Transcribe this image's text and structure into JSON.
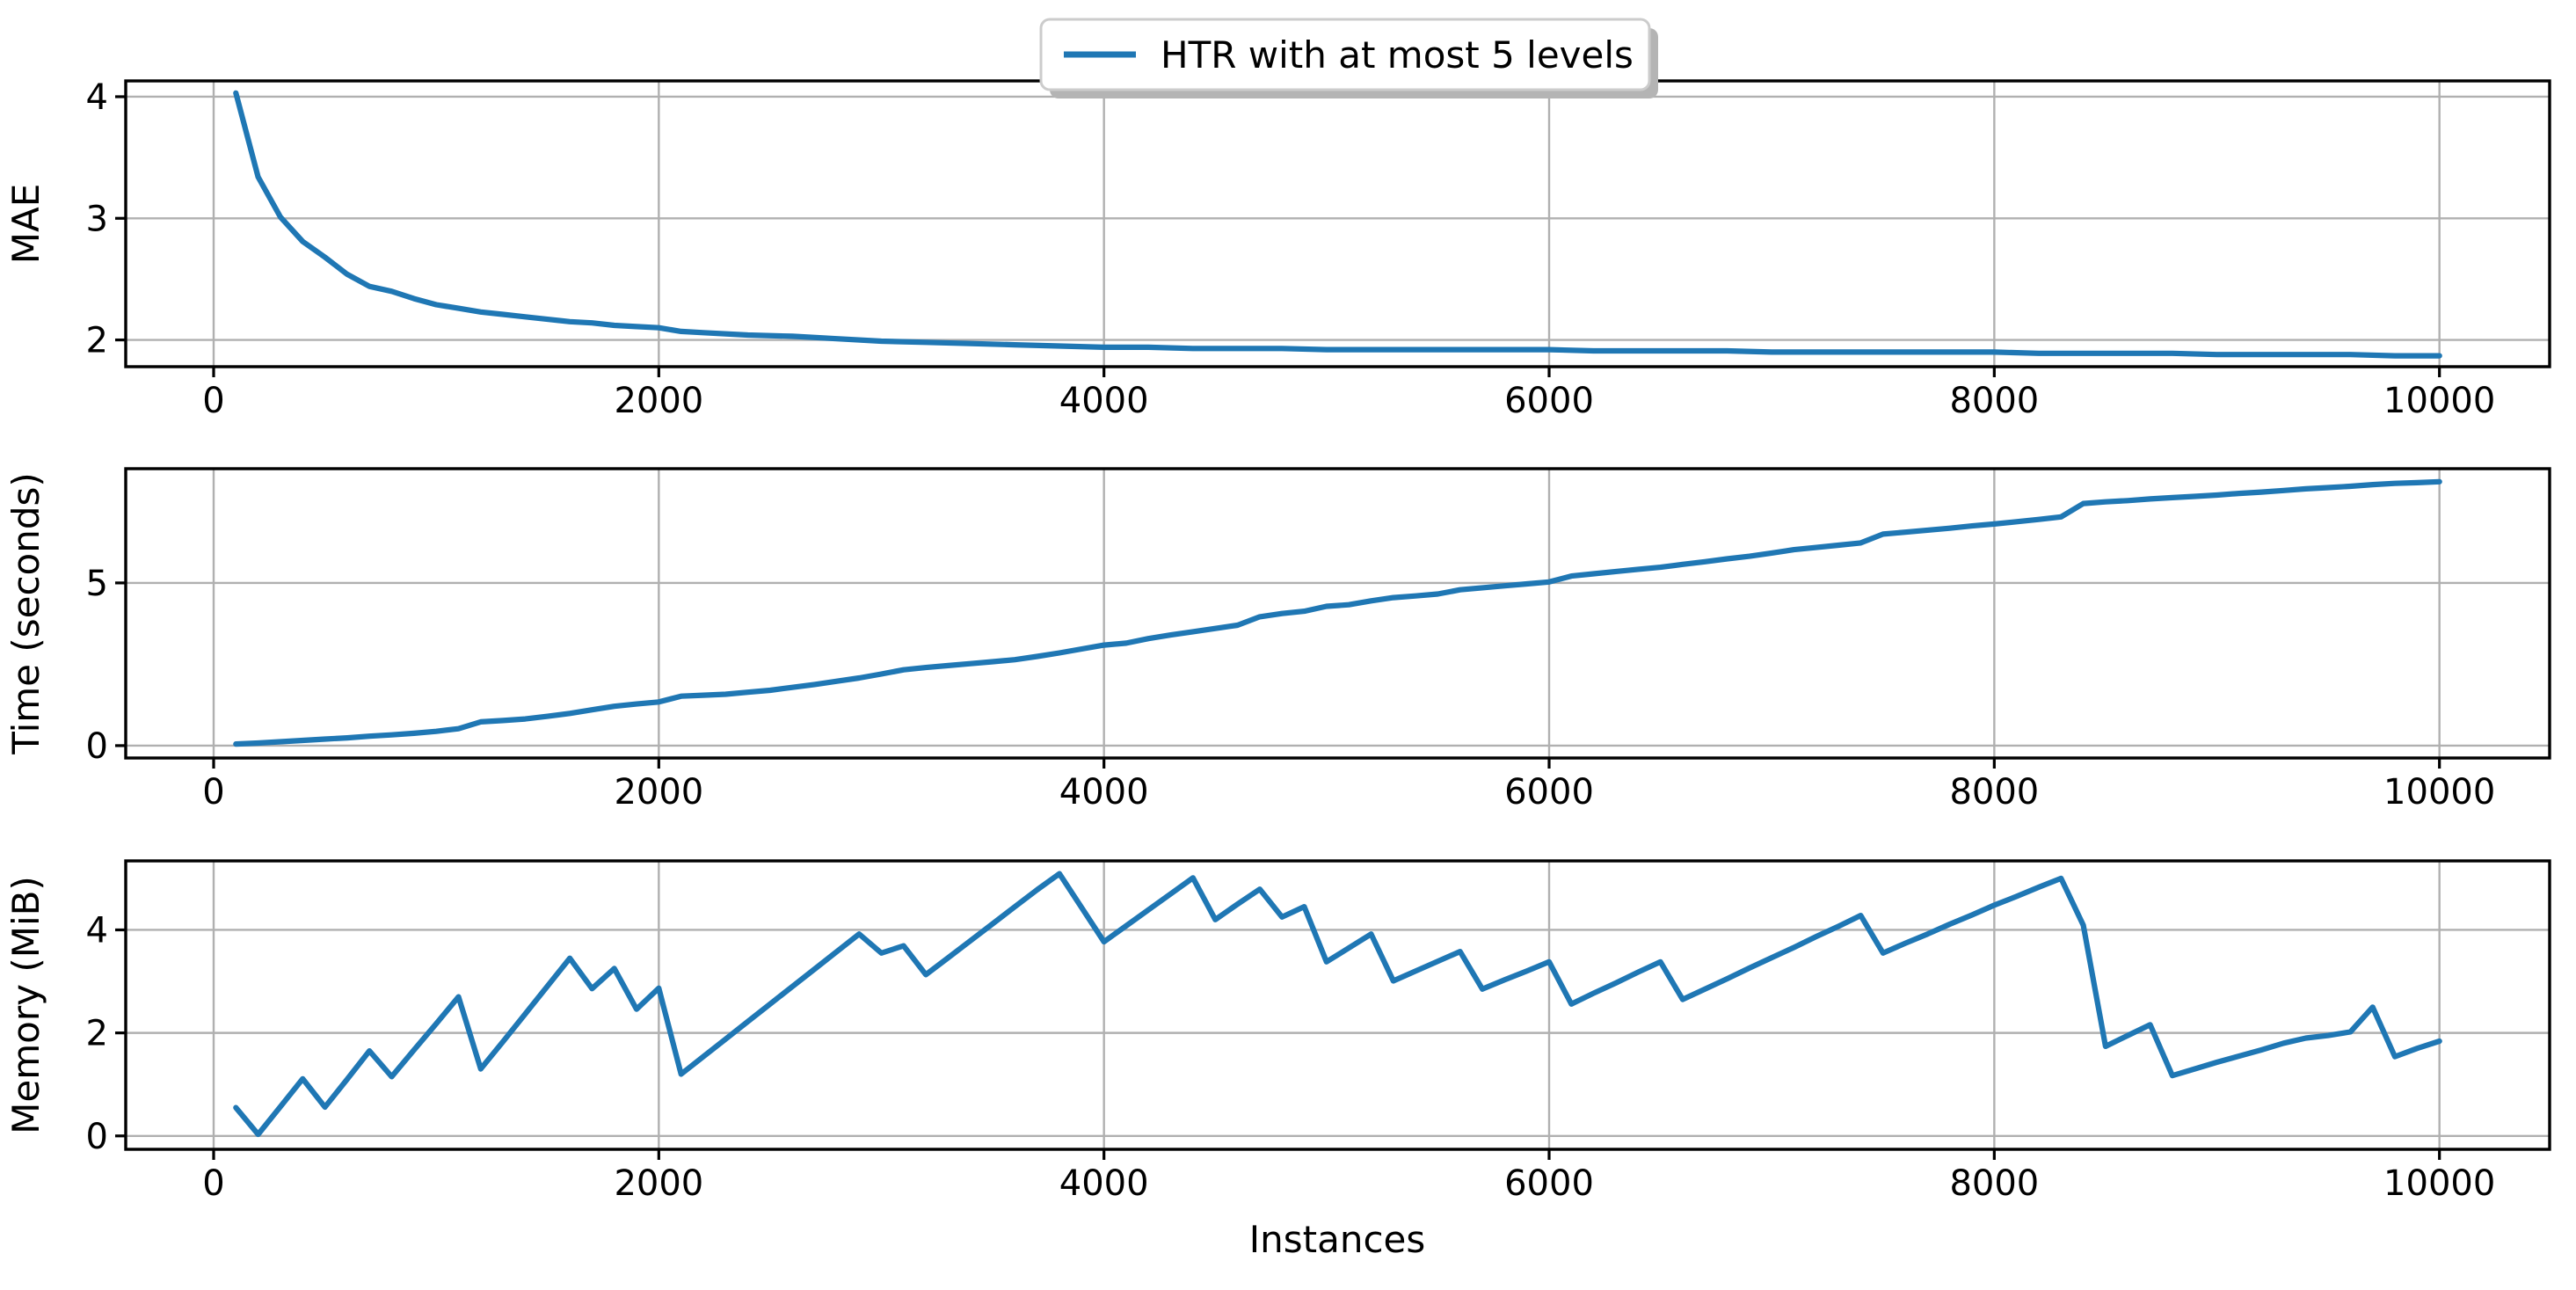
{
  "figure": {
    "background": "#ffffff"
  },
  "legend": {
    "label": "HTR with at most 5 levels",
    "line_color": "#1f77b4",
    "position": "upper center",
    "box_fill": "#ffffff",
    "box_edge": "#cccccc",
    "shadow_color": "#b4b4b4"
  },
  "xlabel": "Instances",
  "colors": {
    "grid": "#b0b0b0",
    "spine": "#000000",
    "series": "#1f77b4"
  },
  "chart_data": [
    {
      "type": "line",
      "ylabel": "MAE",
      "xlim": [
        -395,
        10495
      ],
      "ylim": [
        1.78,
        4.13
      ],
      "xticks": [
        0,
        2000,
        4000,
        6000,
        8000,
        10000
      ],
      "yticks": [
        2,
        3,
        4
      ],
      "grid": true,
      "legend_position": "upper center",
      "series": [
        {
          "name": "HTR with at most 5 levels",
          "color": "#1f77b4",
          "x": [
            100,
            200,
            300,
            400,
            500,
            600,
            700,
            800,
            900,
            1000,
            1100,
            1200,
            1300,
            1400,
            1500,
            1600,
            1700,
            1800,
            1900,
            2000,
            2100,
            2200,
            2400,
            2600,
            2800,
            3000,
            3200,
            3400,
            3600,
            3800,
            4000,
            4200,
            4400,
            4600,
            4800,
            5000,
            5200,
            5400,
            5600,
            5800,
            6000,
            6200,
            6400,
            6600,
            6800,
            7000,
            7200,
            7400,
            7600,
            7800,
            8000,
            8200,
            8400,
            8600,
            8800,
            9000,
            9200,
            9400,
            9600,
            9800,
            10000
          ],
          "y": [
            4.03,
            3.34,
            3.01,
            2.81,
            2.68,
            2.54,
            2.44,
            2.4,
            2.34,
            2.29,
            2.26,
            2.23,
            2.21,
            2.19,
            2.17,
            2.15,
            2.14,
            2.12,
            2.11,
            2.1,
            2.07,
            2.06,
            2.04,
            2.03,
            2.01,
            1.99,
            1.98,
            1.97,
            1.96,
            1.95,
            1.94,
            1.94,
            1.93,
            1.93,
            1.93,
            1.92,
            1.92,
            1.92,
            1.92,
            1.92,
            1.92,
            1.91,
            1.91,
            1.91,
            1.91,
            1.9,
            1.9,
            1.9,
            1.9,
            1.9,
            1.9,
            1.89,
            1.89,
            1.89,
            1.89,
            1.88,
            1.88,
            1.88,
            1.88,
            1.87,
            1.87
          ]
        }
      ]
    },
    {
      "type": "line",
      "ylabel": "Time (seconds)",
      "xlim": [
        -395,
        10495
      ],
      "ylim": [
        -0.38,
        8.51
      ],
      "xticks": [
        0,
        2000,
        4000,
        6000,
        8000,
        10000
      ],
      "yticks": [
        0,
        5
      ],
      "grid": true,
      "series": [
        {
          "name": "HTR with at most 5 levels",
          "color": "#1f77b4",
          "x": [
            100,
            200,
            300,
            400,
            500,
            600,
            700,
            800,
            900,
            1000,
            1100,
            1200,
            1300,
            1400,
            1500,
            1600,
            1700,
            1800,
            1900,
            2000,
            2100,
            2200,
            2300,
            2400,
            2500,
            2600,
            2700,
            2800,
            2900,
            3000,
            3100,
            3200,
            3300,
            3400,
            3500,
            3600,
            3700,
            3800,
            3900,
            4000,
            4100,
            4200,
            4300,
            4400,
            4500,
            4600,
            4700,
            4800,
            4900,
            5000,
            5100,
            5200,
            5300,
            5400,
            5500,
            5600,
            5700,
            5800,
            5900,
            6000,
            6100,
            6200,
            6300,
            6400,
            6500,
            6600,
            6700,
            6800,
            6900,
            7000,
            7100,
            7200,
            7300,
            7400,
            7500,
            7600,
            7700,
            7800,
            7900,
            8000,
            8100,
            8200,
            8300,
            8400,
            8500,
            8600,
            8700,
            8800,
            8900,
            9000,
            9100,
            9200,
            9300,
            9400,
            9500,
            9600,
            9700,
            9800,
            9900,
            10000
          ],
          "y": [
            0.05,
            0.08,
            0.12,
            0.16,
            0.2,
            0.24,
            0.29,
            0.33,
            0.38,
            0.44,
            0.52,
            0.73,
            0.77,
            0.82,
            0.9,
            0.99,
            1.1,
            1.21,
            1.28,
            1.34,
            1.52,
            1.55,
            1.58,
            1.64,
            1.7,
            1.79,
            1.88,
            1.98,
            2.08,
            2.2,
            2.33,
            2.4,
            2.46,
            2.52,
            2.58,
            2.64,
            2.74,
            2.85,
            2.97,
            3.09,
            3.15,
            3.29,
            3.4,
            3.5,
            3.6,
            3.7,
            3.96,
            4.06,
            4.13,
            4.28,
            4.33,
            4.45,
            4.55,
            4.6,
            4.66,
            4.79,
            4.85,
            4.91,
            4.97,
            5.03,
            5.21,
            5.28,
            5.35,
            5.42,
            5.48,
            5.57,
            5.65,
            5.74,
            5.82,
            5.92,
            6.02,
            6.09,
            6.16,
            6.23,
            6.5,
            6.56,
            6.62,
            6.68,
            6.75,
            6.81,
            6.88,
            6.95,
            7.03,
            7.44,
            7.49,
            7.53,
            7.58,
            7.62,
            7.66,
            7.7,
            7.75,
            7.79,
            7.84,
            7.89,
            7.93,
            7.97,
            8.02,
            8.06,
            8.08,
            8.11
          ]
        }
      ]
    },
    {
      "type": "line",
      "ylabel": "Memory (MiB)",
      "xlabel": "Instances",
      "xlim": [
        -395,
        10495
      ],
      "ylim": [
        -0.26,
        5.34
      ],
      "xticks": [
        0,
        2000,
        4000,
        6000,
        8000,
        10000
      ],
      "yticks": [
        0,
        2,
        4
      ],
      "grid": true,
      "series": [
        {
          "name": "HTR with at most 5 levels",
          "color": "#1f77b4",
          "x": [
            100,
            200,
            300,
            400,
            500,
            600,
            700,
            800,
            900,
            1000,
            1100,
            1200,
            1300,
            1400,
            1500,
            1600,
            1700,
            1800,
            1900,
            2000,
            2100,
            2200,
            2300,
            2400,
            2500,
            2600,
            2700,
            2800,
            2900,
            3000,
            3100,
            3200,
            3300,
            3400,
            3500,
            3600,
            3700,
            3800,
            3900,
            4000,
            4100,
            4200,
            4300,
            4400,
            4500,
            4600,
            4700,
            4800,
            4900,
            5000,
            5100,
            5200,
            5300,
            5400,
            5500,
            5600,
            5700,
            5800,
            5900,
            6000,
            6100,
            6200,
            6300,
            6400,
            6500,
            6600,
            6700,
            6800,
            6900,
            7000,
            7100,
            7200,
            7300,
            7400,
            7500,
            7600,
            7700,
            7800,
            7900,
            8000,
            8100,
            8200,
            8300,
            8400,
            8500,
            8600,
            8700,
            8800,
            8900,
            9000,
            9100,
            9200,
            9300,
            9400,
            9500,
            9600,
            9700,
            9800,
            9900,
            10000
          ],
          "y": [
            0.55,
            0.03,
            0.57,
            1.11,
            0.56,
            1.1,
            1.65,
            1.15,
            1.67,
            2.18,
            2.7,
            1.3,
            1.83,
            2.37,
            2.91,
            3.45,
            2.86,
            3.25,
            2.46,
            2.87,
            1.2,
            1.54,
            1.88,
            2.22,
            2.56,
            2.9,
            3.24,
            3.58,
            3.92,
            3.55,
            3.69,
            3.13,
            3.46,
            3.79,
            4.12,
            4.45,
            4.78,
            5.09,
            4.43,
            3.77,
            4.08,
            4.39,
            4.7,
            5.01,
            4.2,
            4.5,
            4.79,
            4.25,
            4.45,
            3.38,
            3.65,
            3.92,
            3.01,
            3.2,
            3.39,
            3.58,
            2.85,
            3.03,
            3.2,
            3.38,
            2.56,
            2.77,
            2.97,
            3.18,
            3.38,
            2.65,
            2.85,
            3.05,
            3.26,
            3.46,
            3.66,
            3.87,
            4.07,
            4.28,
            3.55,
            3.74,
            3.92,
            4.11,
            4.29,
            4.48,
            4.65,
            4.83,
            5.0,
            4.09,
            1.74,
            1.95,
            2.16,
            1.17,
            1.3,
            1.43,
            1.55,
            1.67,
            1.8,
            1.9,
            1.95,
            2.02,
            2.5,
            1.54,
            1.7,
            1.84
          ]
        }
      ]
    }
  ]
}
